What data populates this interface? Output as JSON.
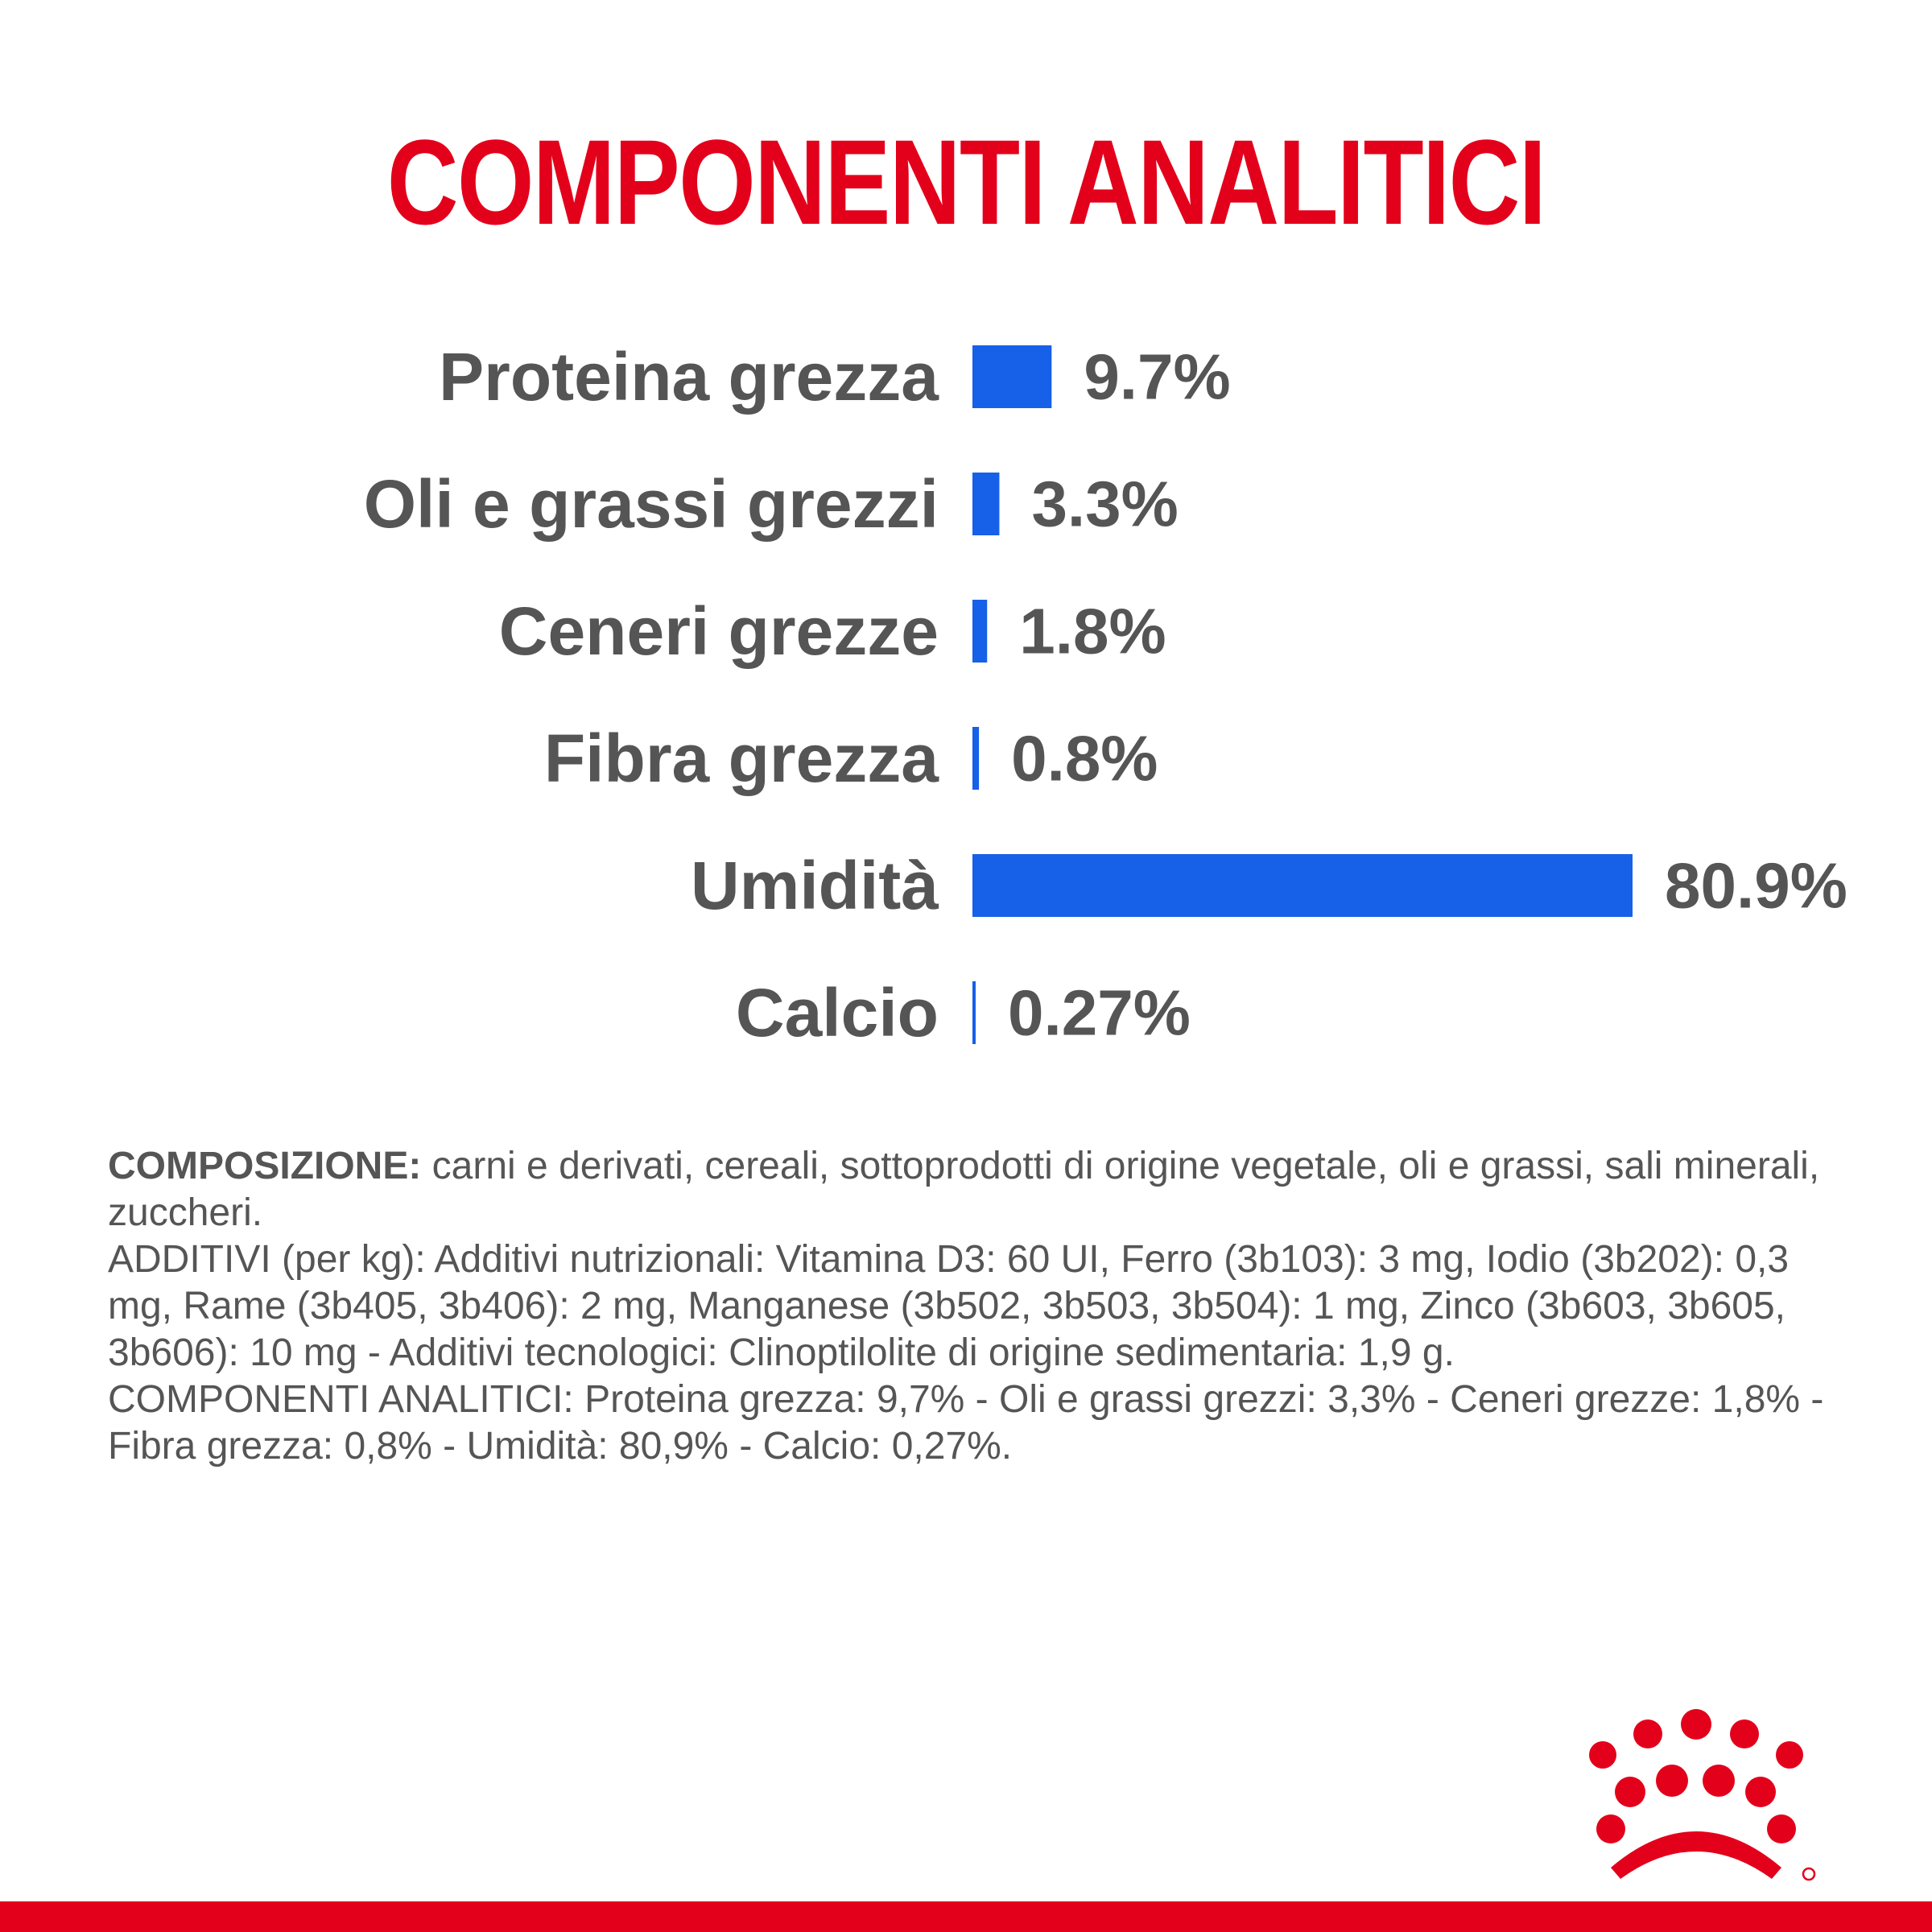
{
  "title": "COMPONENTI ANALITICI",
  "colors": {
    "accent": "#e3001b",
    "bar": "#1760e8",
    "text": "#555555"
  },
  "chart_data": {
    "type": "bar",
    "orientation": "horizontal",
    "categories": [
      "Proteina grezza",
      "Oli e grassi grezzi",
      "Ceneri grezze",
      "Fibra grezza",
      "Umidità",
      "Calcio"
    ],
    "values": [
      9.7,
      3.3,
      1.8,
      0.8,
      80.9,
      0.27
    ],
    "value_labels": [
      "9.7%",
      "3.3%",
      "1.8%",
      "0.8%",
      "80.9%",
      "0.27%"
    ],
    "title": "",
    "xlabel": "",
    "ylabel": "",
    "xlim": [
      0,
      80.9
    ],
    "grid": false
  },
  "composition": {
    "heading": "COMPOSIZIONE:",
    "text": " carni e derivati, cereali, sottoprodotti di origine vegetale, oli e grassi, sali minerali, zuccheri.",
    "additives": "ADDITIVI (per kg): Additivi nutrizionali: Vitamina D3: 60 UI, Ferro (3b103): 3 mg, Iodio (3b202): 0,3 mg, Rame (3b405, 3b406): 2 mg, Manganese (3b502, 3b503, 3b504): 1 mg, Zinco (3b603, 3b605, 3b606): 10 mg - Additivi tecnologici: Clinoptilolite di origine sedimentaria: 1,9 g.",
    "analytical": "COMPONENTI ANALITICI: Proteina grezza: 9,7% - Oli e grassi grezzi: 3,3% - Ceneri grezze: 1,8% - Fibra grezza: 0,8% - Umidità: 80,9% - Calcio: 0,27%."
  },
  "logo": {
    "icon": "royal-canin-crown-logo"
  }
}
